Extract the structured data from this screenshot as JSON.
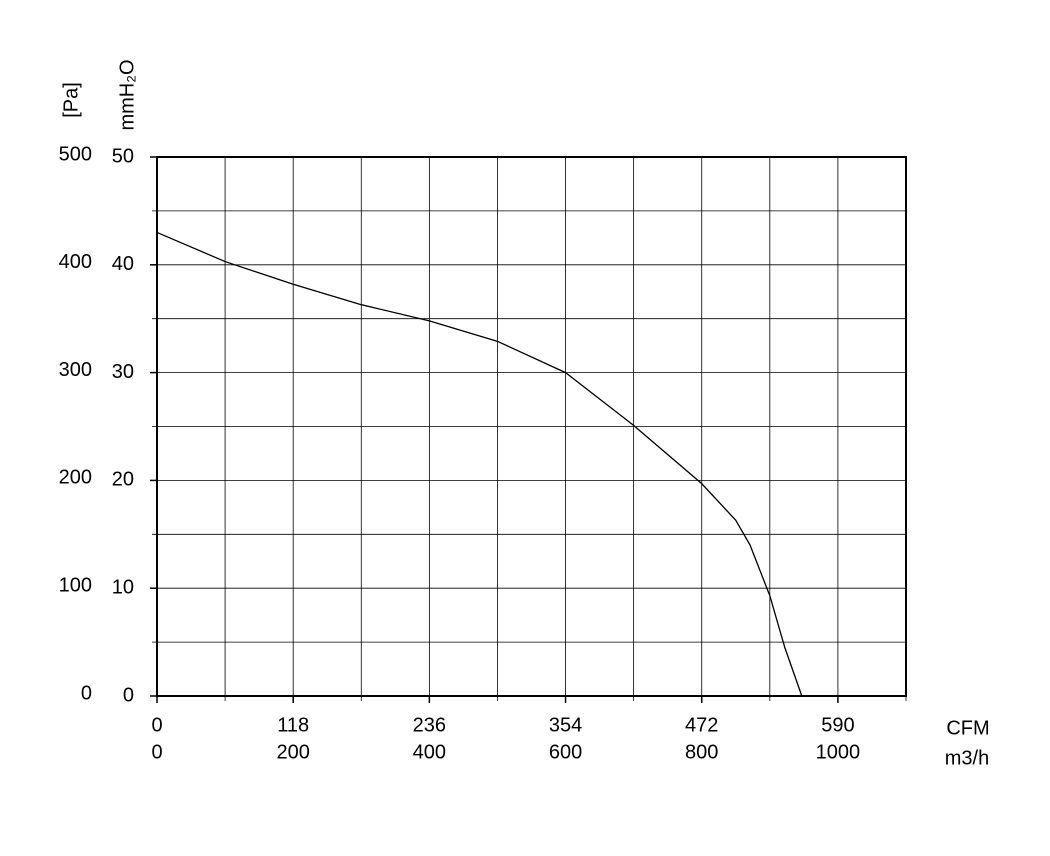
{
  "chart_data": {
    "type": "line",
    "y_label": "[Pa]",
    "y2_label": "mmH₂O",
    "x_label": "m3/h",
    "x2_label": "CFM",
    "x": [
      0,
      100,
      200,
      300,
      400,
      500,
      600,
      700,
      800,
      850,
      871,
      900,
      922,
      947
    ],
    "series": [
      {
        "color": "#000000",
        "values": [
          430,
          403,
          382,
          363,
          348,
          329,
          300,
          251,
          197,
          163,
          140,
          93,
          45,
          0
        ]
      }
    ],
    "xlim": [
      0,
      1100
    ],
    "xticks": [
      0,
      200,
      400,
      600,
      800,
      1000
    ],
    "x2lim": [
      0,
      649
    ],
    "x2ticks": [
      0,
      118,
      236,
      354,
      472,
      590
    ],
    "ylim": [
      0,
      500
    ],
    "yticks": [
      0,
      100,
      200,
      300,
      400,
      500
    ],
    "y2lim": [
      0,
      50
    ],
    "y2ticks": [
      0,
      10,
      20,
      30,
      40,
      50
    ],
    "minor_xticks": [
      100,
      300,
      500,
      700,
      900,
      1100
    ],
    "minor_yticks": [
      50,
      150,
      250,
      350,
      450
    ],
    "grid": true
  }
}
